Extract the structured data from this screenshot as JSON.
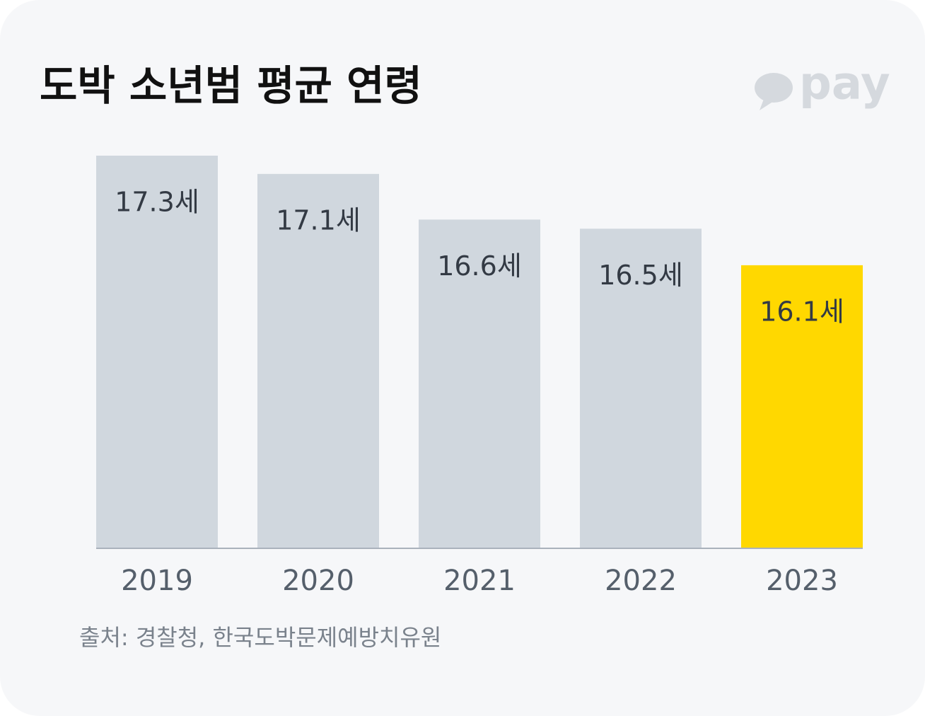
{
  "chart_data": {
    "type": "bar",
    "title": "도박 소년범 평균 연령",
    "logo": "pay",
    "categories": [
      "2019",
      "2020",
      "2021",
      "2022",
      "2023"
    ],
    "values": [
      17.3,
      17.1,
      16.6,
      16.5,
      16.1
    ],
    "value_labels": [
      "17.3세",
      "17.1세",
      "16.6세",
      "16.5세",
      "16.1세"
    ],
    "colors": [
      "#d0d7de",
      "#d0d7de",
      "#d0d7de",
      "#d0d7de",
      "#ffd800"
    ],
    "ylim": [
      13,
      17.3
    ],
    "source": "출처: 경찰청, 한국도박문제예방치유원"
  }
}
